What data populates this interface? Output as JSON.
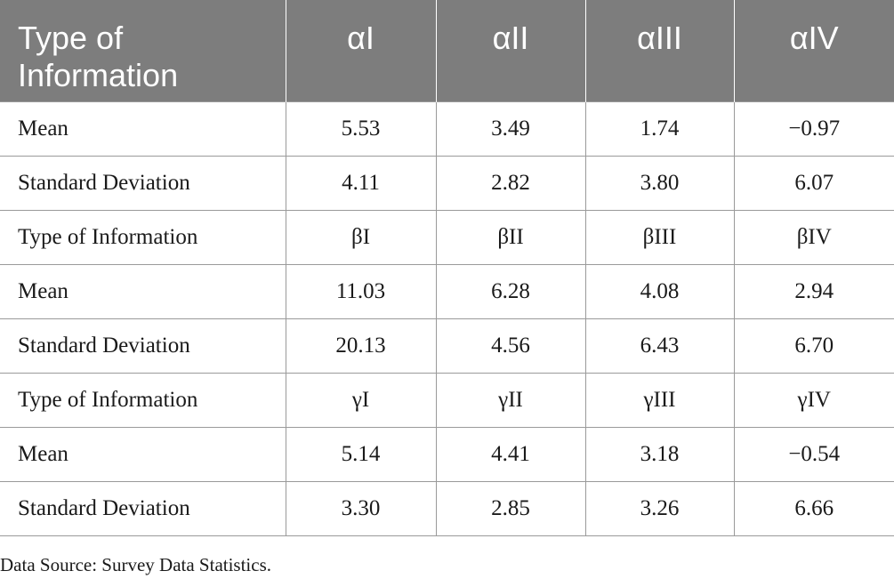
{
  "table": {
    "header": [
      "Type of\nInformation",
      "αI",
      "αII",
      "αIII",
      "αIV"
    ],
    "rows": [
      [
        "Mean",
        "5.53",
        "3.49",
        "1.74",
        "−0.97"
      ],
      [
        "Standard Deviation",
        "4.11",
        "2.82",
        "3.80",
        "6.07"
      ],
      [
        "Type of Information",
        "βI",
        "βII",
        "βIII",
        "βIV"
      ],
      [
        "Mean",
        "11.03",
        "6.28",
        "4.08",
        "2.94"
      ],
      [
        "Standard Deviation",
        "20.13",
        "4.56",
        "6.43",
        "6.70"
      ],
      [
        "Type of Information",
        "γI",
        "γII",
        "γIII",
        "γIV"
      ],
      [
        "Mean",
        "5.14",
        "4.41",
        "3.18",
        "−0.54"
      ],
      [
        "Standard Deviation",
        "3.30",
        "2.85",
        "3.26",
        "6.66"
      ]
    ]
  },
  "footer": {
    "note": "Data Source: Survey Data Statistics."
  }
}
